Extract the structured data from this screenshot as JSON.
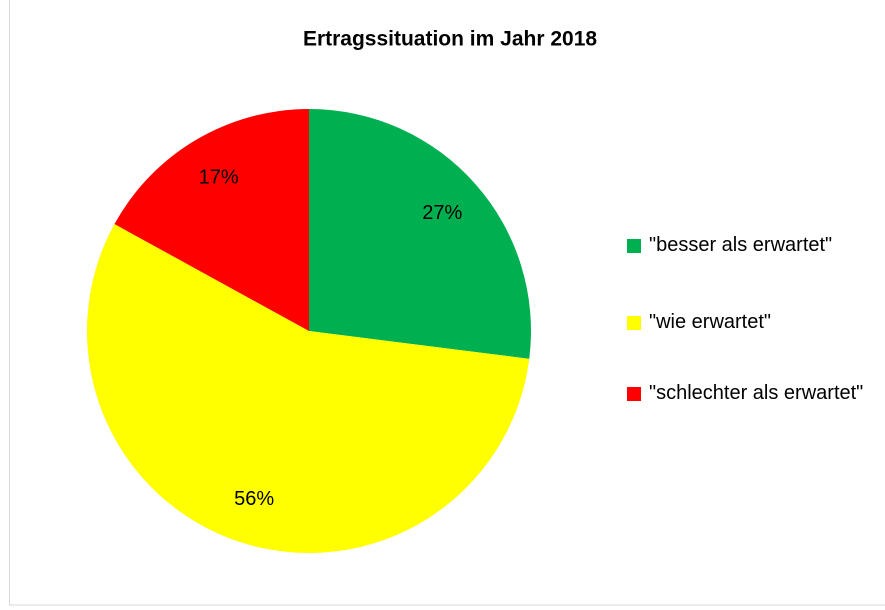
{
  "chart_data": {
    "type": "pie",
    "title": "Ertragssituation im Jahr 2018",
    "categories": [
      "\"besser als erwartet\"",
      "\"wie erwartet\"",
      "\"schlechter als erwartet\""
    ],
    "values": [
      27,
      56,
      17
    ],
    "value_labels": [
      "27%",
      "56%",
      "17%"
    ],
    "colors": [
      "#00b050",
      "#ffff00",
      "#ff0000"
    ],
    "legend": "right"
  }
}
